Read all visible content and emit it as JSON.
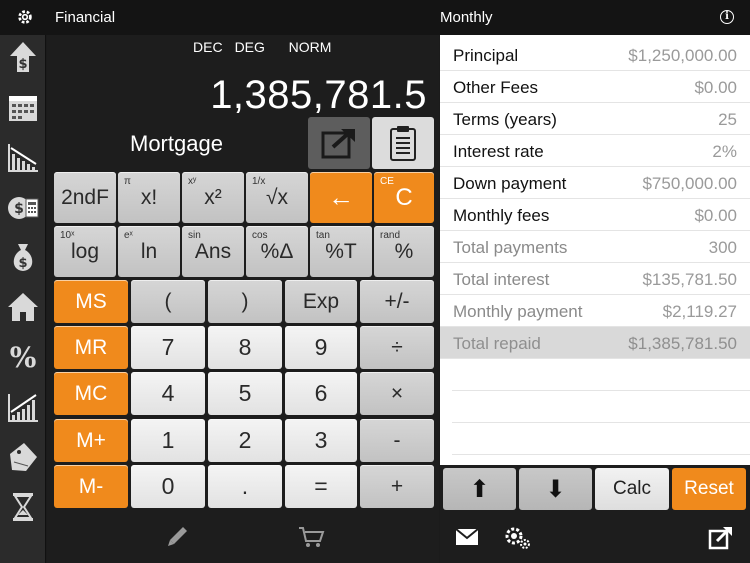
{
  "topbar": {
    "left_title": "Financial",
    "right_title": "Monthly",
    "info_glyph": "i"
  },
  "calculator": {
    "modes": [
      "DEC",
      "DEG",
      "NORM"
    ],
    "display": "1,385,781.5",
    "mode_label": "Mortgage",
    "keys": {
      "second": "2ndF",
      "fact": {
        "label": "x!",
        "sup": "π"
      },
      "square": {
        "label": "x²",
        "sup": "xʸ"
      },
      "sqrt": {
        "label": "√x",
        "sup": "1/x"
      },
      "backspace": "←",
      "clear": {
        "label": "C",
        "sup": "CE"
      },
      "log": {
        "label": "log",
        "sup": "10ˣ"
      },
      "ln": {
        "label": "ln",
        "sup": "eˣ"
      },
      "ans": {
        "label": "Ans",
        "sup": "sin"
      },
      "pctdelta": {
        "label": "%Δ",
        "sup": "cos"
      },
      "pctt": {
        "label": "%T",
        "sup": "tan"
      },
      "pct": {
        "label": "%",
        "sup": "rand"
      },
      "ms": "MS",
      "mr": "MR",
      "mc": "MC",
      "mplus": "M+",
      "mminus": "M-",
      "lparen": "(",
      "rparen": ")",
      "exp": "Exp",
      "plusminus": "+/-",
      "d7": "7",
      "d8": "8",
      "d9": "9",
      "div": "÷",
      "d4": "4",
      "d5": "5",
      "d6": "6",
      "mul": "×",
      "d1": "1",
      "d2": "2",
      "d3": "3",
      "sub": "-",
      "d0": "0",
      "dot": ".",
      "eq": "=",
      "add": "+"
    }
  },
  "mortgage": {
    "rows": [
      {
        "label": "Principal",
        "value": "$1,250,000.00"
      },
      {
        "label": "Other Fees",
        "value": "$0.00"
      },
      {
        "label": "Terms (years)",
        "value": "25"
      },
      {
        "label": "Interest rate",
        "value": "2%"
      },
      {
        "label": "Down payment",
        "value": "$750,000.00"
      },
      {
        "label": "Monthly fees",
        "value": "$0.00"
      },
      {
        "label": "Total payments",
        "value": "300"
      },
      {
        "label": "Total interest",
        "value": "$135,781.50"
      },
      {
        "label": "Monthly payment",
        "value": "$2,119.27"
      },
      {
        "label": "Total repaid",
        "value": "$1,385,781.50"
      }
    ],
    "buttons": {
      "up": "⬆",
      "down": "⬇",
      "calc": "Calc",
      "reset": "Reset"
    }
  },
  "colors": {
    "accent": "#f08a1c",
    "background": "#1d1d1d",
    "key": "#c9c9c9"
  },
  "icons": {
    "sidebar": [
      "dollar-up-arrow-icon",
      "calendar-icon",
      "declining-chart-icon",
      "cash-calculator-icon",
      "money-bag-icon",
      "house-icon",
      "percent-icon",
      "growth-chart-icon",
      "price-tag-icon",
      "hourglass-icon"
    ],
    "calc_bottom": [
      "pen-icon",
      "cart-icon"
    ],
    "right_bottom": [
      "mail-icon",
      "settings-icon",
      "share-icon"
    ]
  }
}
